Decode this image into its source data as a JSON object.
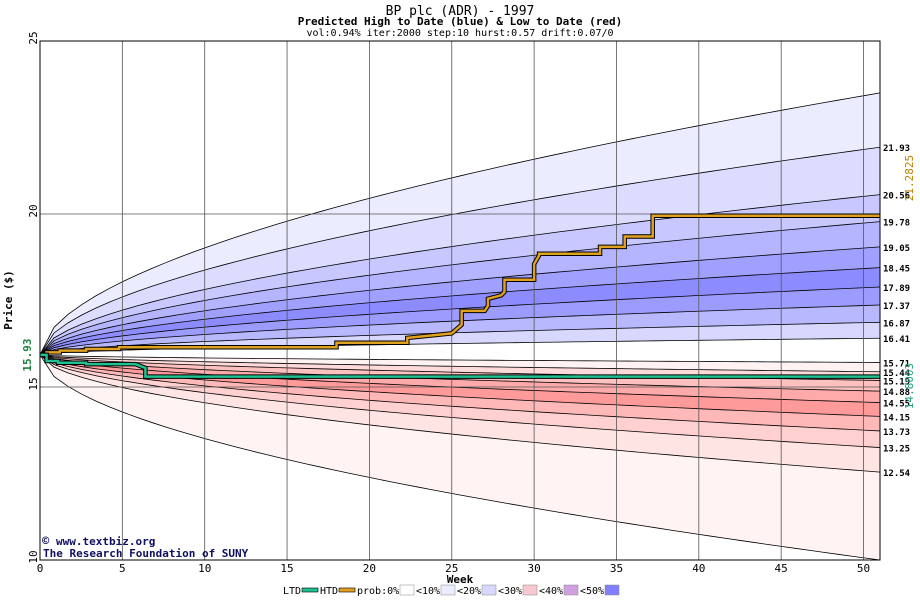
{
  "chart_data": {
    "type": "area",
    "title": "BP plc (ADR) - 1997",
    "subtitle": "Predicted High to Date (blue) &  Low to Date (red)",
    "params": "vol:0.94% iter:2000 step:10 hurst:0.57 drift:0.07/0",
    "xlabel": "Week",
    "ylabel": "Price ($)",
    "xlim": [
      0,
      51
    ],
    "ylim": [
      10,
      25
    ],
    "x_ticks": [
      0,
      5,
      10,
      15,
      20,
      25,
      30,
      35,
      40,
      45,
      50
    ],
    "y_ticks": [
      10,
      15,
      20,
      25
    ],
    "grid": true,
    "start_price": 15.93,
    "start_label": "15.93",
    "right_labels": [
      "21.93",
      "20.56",
      "19.78",
      "19.05",
      "18.45",
      "17.89",
      "17.37",
      "16.87",
      "16.41",
      "15.71",
      "15.44",
      "15.19",
      "14.88",
      "14.55",
      "14.15",
      "13.73",
      "13.25",
      "12.54"
    ],
    "band_values": [
      23.5,
      21.93,
      20.56,
      19.78,
      19.05,
      18.45,
      17.89,
      17.37,
      16.87,
      16.41,
      15.71,
      15.44,
      15.19,
      14.88,
      14.55,
      14.15,
      13.73,
      13.25,
      12.54,
      10.0
    ],
    "band_colors": [
      "#ececff",
      "#dcdcff",
      "#c8c8ff",
      "#b4b4ff",
      "#a0a0ff",
      "#8c8cff",
      "#9c9cff",
      "#b8b8ff",
      "#d8d8ff",
      "#ffffff",
      "#fff2f2",
      "#ffdada",
      "#ffc0c0",
      "#ffaaaa",
      "#ff9a9a",
      "#ffb8b8",
      "#ffd0d0",
      "#ffe4e4",
      "#fff3f3"
    ],
    "htd_series": {
      "name": "HTD",
      "color": "#e0a020",
      "x": [
        0,
        0.4,
        0.4,
        1.2,
        1.2,
        2.8,
        2.8,
        4.8,
        4.8,
        18,
        18,
        22.3,
        22.3,
        25,
        25.6,
        25.6,
        27,
        27.2,
        27.2,
        28,
        28.2,
        28.2,
        30,
        30,
        30.3,
        30.3,
        34,
        34,
        35.5,
        35.5,
        37.2,
        37.2,
        51
      ],
      "y": [
        15.93,
        15.93,
        16.0,
        16.0,
        16.05,
        16.05,
        16.1,
        16.1,
        16.15,
        16.15,
        16.28,
        16.28,
        16.42,
        16.55,
        16.8,
        17.2,
        17.2,
        17.35,
        17.55,
        17.65,
        17.75,
        18.1,
        18.1,
        18.55,
        18.8,
        18.85,
        18.85,
        19.05,
        19.05,
        19.35,
        19.35,
        19.95,
        19.95
      ]
    },
    "ltd_series": {
      "name": "LTD",
      "color": "#20c090",
      "x": [
        0,
        0.4,
        0.4,
        1.1,
        1.1,
        2.8,
        2.8,
        5.8,
        6.4,
        6.4,
        51
      ],
      "y": [
        15.93,
        15.93,
        15.75,
        15.75,
        15.7,
        15.7,
        15.66,
        15.66,
        15.55,
        15.3,
        15.3
      ]
    },
    "htd_final": "21.2825",
    "ltd_final": "14.8003",
    "watermark_lines": [
      "www.textbiz.org",
      "The Research Foundation of SUNY"
    ],
    "legend": [
      {
        "type": "line",
        "label": "LTD",
        "color": "#20c090"
      },
      {
        "type": "line",
        "label": "HTD",
        "color": "#e0a020"
      },
      {
        "type": "swatch",
        "label": "prob:0%",
        "color": "#ffffff"
      },
      {
        "type": "swatch",
        "label": "<10%",
        "color": "#ececff"
      },
      {
        "type": "swatch",
        "label": "<20%",
        "color": "#d8d8ff"
      },
      {
        "type": "swatch",
        "label": "<30%",
        "color": "#f8c8d0"
      },
      {
        "type": "swatch",
        "label": "<40%",
        "color": "#d0a0e0"
      },
      {
        "type": "swatch",
        "label": "<50%",
        "color": "#8080ff"
      }
    ]
  }
}
